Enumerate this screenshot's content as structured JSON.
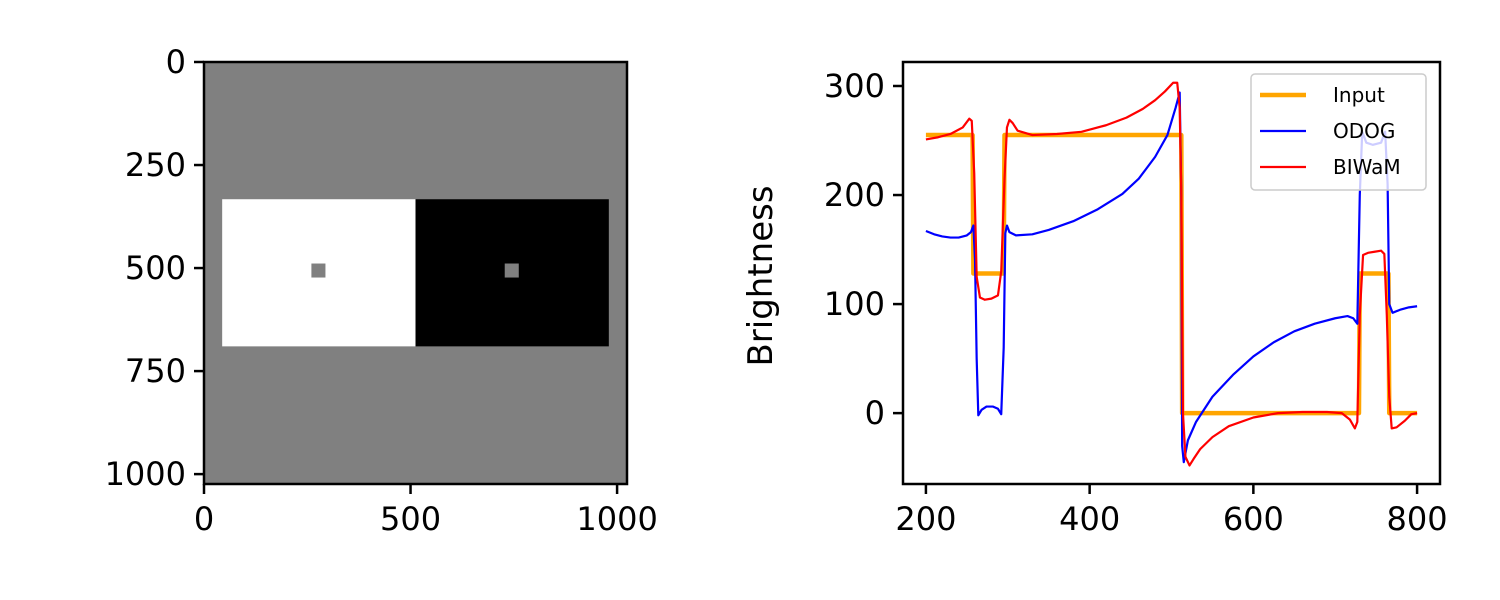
{
  "chart_data": [
    {
      "type": "heatmap",
      "description_free": true,
      "xticks": [
        "0",
        "500",
        "1000"
      ],
      "yticks": [
        "0",
        "250",
        "500",
        "750",
        "1000"
      ],
      "xlim": [
        0,
        1024
      ],
      "ylim": [
        1024,
        0
      ],
      "regions": [
        {
          "name": "background",
          "x0": 0,
          "x1": 1024,
          "y0": 0,
          "y1": 1024,
          "gray": 128
        },
        {
          "name": "white-rect",
          "x0": 44,
          "x1": 512,
          "y0": 333,
          "y1": 690,
          "gray": 255
        },
        {
          "name": "black-rect",
          "x0": 512,
          "x1": 980,
          "y0": 333,
          "y1": 690,
          "gray": 0
        },
        {
          "name": "left-target",
          "x0": 260,
          "x1": 294,
          "y0": 489,
          "y1": 523,
          "gray": 128
        },
        {
          "name": "right-target",
          "x0": 728,
          "x1": 762,
          "y0": 489,
          "y1": 523,
          "gray": 128
        }
      ]
    },
    {
      "type": "line",
      "xlabel": "",
      "ylabel": "Brightness",
      "xlim": [
        172,
        828
      ],
      "ylim": [
        -65,
        322
      ],
      "xticks": [
        "200",
        "400",
        "600",
        "800"
      ],
      "yticks": [
        "0",
        "100",
        "200",
        "300"
      ],
      "legend_position": "top-right",
      "series": [
        {
          "name": "Input",
          "color": "#ffa500",
          "points": [
            [
              200,
              255
            ],
            [
              257,
              255
            ],
            [
              258,
              128
            ],
            [
              295,
              128
            ],
            [
              296,
              255
            ],
            [
              512,
              255
            ],
            [
              513,
              0
            ],
            [
              729,
              0
            ],
            [
              730,
              128
            ],
            [
              765,
              128
            ],
            [
              766,
              0
            ],
            [
              800,
              0
            ]
          ]
        },
        {
          "name": "ODOG",
          "color": "#0000ff",
          "points": [
            [
              200,
              167
            ],
            [
              210,
              164
            ],
            [
              220,
              162
            ],
            [
              230,
              161
            ],
            [
              240,
              161
            ],
            [
              250,
              163
            ],
            [
              255,
              166
            ],
            [
              258,
              172
            ],
            [
              260,
              140
            ],
            [
              262,
              50
            ],
            [
              264,
              -2
            ],
            [
              268,
              3
            ],
            [
              274,
              6
            ],
            [
              282,
              6
            ],
            [
              288,
              4
            ],
            [
              292,
              -1
            ],
            [
              295,
              60
            ],
            [
              297,
              165
            ],
            [
              299,
              172
            ],
            [
              302,
              166
            ],
            [
              310,
              163
            ],
            [
              330,
              164
            ],
            [
              350,
              168
            ],
            [
              380,
              176
            ],
            [
              410,
              187
            ],
            [
              440,
              201
            ],
            [
              460,
              215
            ],
            [
              480,
              235
            ],
            [
              495,
              255
            ],
            [
              505,
              280
            ],
            [
              510,
              294
            ],
            [
              512,
              200
            ],
            [
              513,
              -30
            ],
            [
              515,
              -45
            ],
            [
              520,
              -25
            ],
            [
              530,
              -8
            ],
            [
              550,
              15
            ],
            [
              575,
              35
            ],
            [
              600,
              52
            ],
            [
              625,
              65
            ],
            [
              650,
              75
            ],
            [
              675,
              82
            ],
            [
              700,
              87
            ],
            [
              715,
              89
            ],
            [
              722,
              87
            ],
            [
              727,
              82
            ],
            [
              730,
              200
            ],
            [
              733,
              258
            ],
            [
              738,
              248
            ],
            [
              746,
              246
            ],
            [
              756,
              248
            ],
            [
              761,
              258
            ],
            [
              764,
              210
            ],
            [
              766,
              100
            ],
            [
              770,
              92
            ],
            [
              780,
              95
            ],
            [
              790,
              97
            ],
            [
              800,
              98
            ]
          ]
        },
        {
          "name": "BIWaM",
          "color": "#ff0000",
          "points": [
            [
              200,
              251
            ],
            [
              215,
              253
            ],
            [
              230,
              256
            ],
            [
              245,
              262
            ],
            [
              253,
              270
            ],
            [
              256,
              268
            ],
            [
              259,
              220
            ],
            [
              262,
              125
            ],
            [
              266,
              106
            ],
            [
              272,
              104
            ],
            [
              280,
              105
            ],
            [
              288,
              108
            ],
            [
              292,
              130
            ],
            [
              296,
              215
            ],
            [
              299,
              262
            ],
            [
              302,
              269
            ],
            [
              306,
              266
            ],
            [
              312,
              259
            ],
            [
              330,
              255
            ],
            [
              360,
              256
            ],
            [
              390,
              258
            ],
            [
              420,
              264
            ],
            [
              445,
              271
            ],
            [
              465,
              279
            ],
            [
              480,
              287
            ],
            [
              492,
              295
            ],
            [
              502,
              303
            ],
            [
              507,
              303
            ],
            [
              510,
              280
            ],
            [
              512,
              200
            ],
            [
              514,
              0
            ],
            [
              517,
              -40
            ],
            [
              522,
              -48
            ],
            [
              527,
              -42
            ],
            [
              535,
              -33
            ],
            [
              550,
              -22
            ],
            [
              570,
              -12
            ],
            [
              600,
              -4
            ],
            [
              630,
              0
            ],
            [
              660,
              1
            ],
            [
              690,
              1
            ],
            [
              708,
              0
            ],
            [
              718,
              -6
            ],
            [
              724,
              -14
            ],
            [
              727,
              -8
            ],
            [
              730,
              90
            ],
            [
              734,
              145
            ],
            [
              740,
              147
            ],
            [
              748,
              148
            ],
            [
              756,
              149
            ],
            [
              760,
              146
            ],
            [
              763,
              90
            ],
            [
              766,
              15
            ],
            [
              769,
              -14
            ],
            [
              775,
              -13
            ],
            [
              785,
              -7
            ],
            [
              793,
              -1
            ],
            [
              800,
              0
            ]
          ]
        }
      ]
    }
  ]
}
